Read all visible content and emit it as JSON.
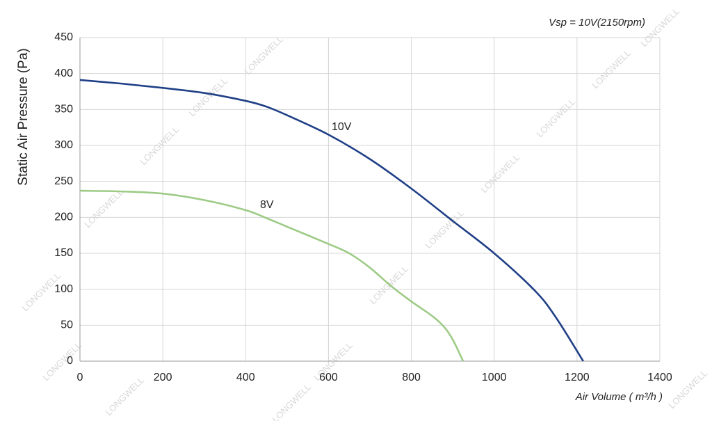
{
  "chart_data": {
    "type": "line",
    "subtitle": "Vsp = 10V(2150rpm)",
    "x_label": "Air Volume ( m³/h )",
    "y_label": "Static Air Pressure  (Pa)",
    "watermark": "LONGWELL",
    "series": [
      {
        "name": "10V",
        "color": "#1f3f86",
        "x": [
          0,
          100,
          200,
          300,
          400,
          450,
          500,
          600,
          700,
          800,
          900,
          1000,
          1100,
          1150,
          1215
        ],
        "values": [
          391,
          386,
          380,
          373,
          362,
          354,
          342,
          315,
          281,
          240,
          195,
          150,
          97,
          60,
          0
        ]
      },
      {
        "name": "8V",
        "color": "#9dcb86",
        "x": [
          0,
          100,
          200,
          300,
          400,
          450,
          500,
          600,
          650,
          700,
          750,
          800,
          850,
          880,
          900,
          925
        ],
        "values": [
          237,
          236,
          233,
          224,
          210,
          199,
          187,
          163,
          150,
          130,
          105,
          83,
          63,
          47,
          30,
          0
        ]
      }
    ],
    "xlim": [
      0,
      1400
    ],
    "xticks": [
      0,
      200,
      400,
      600,
      800,
      1000,
      1200,
      1400
    ],
    "ylim": [
      0,
      450
    ],
    "yticks": [
      0,
      50,
      100,
      150,
      200,
      250,
      300,
      350,
      400,
      450
    ],
    "grid": true
  }
}
